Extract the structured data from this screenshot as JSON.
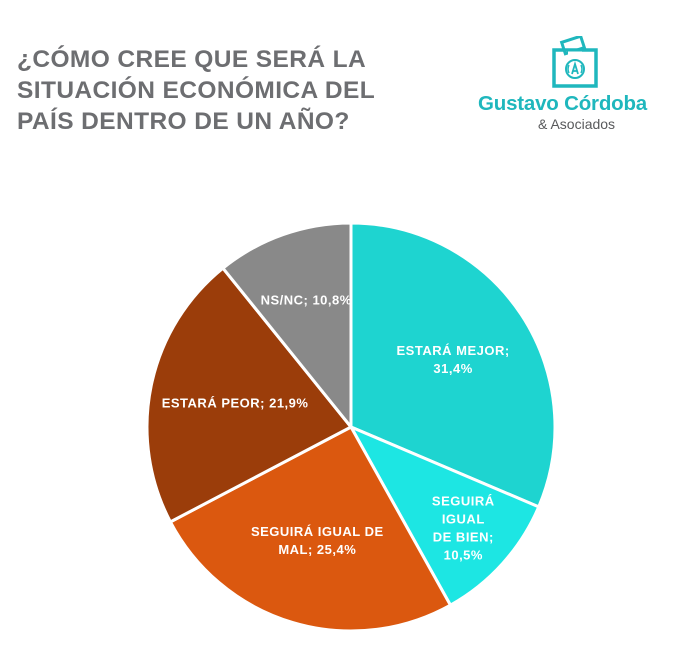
{
  "title_lines": [
    "¿CÓMO CREE QUE SERÁ LA",
    "SITUACIÓN ECONÓMICA DEL",
    "PAÍS DENTRO DE UN AÑO?"
  ],
  "logo": {
    "name": "Gustavo Córdoba",
    "sub": "& Asociados",
    "icon": "ballot-box-icon"
  },
  "colors": {
    "title": "#6d6e71",
    "brand": "#1fb7bd"
  },
  "chart_data": {
    "type": "pie",
    "title": "¿CÓMO CREE QUE SERÁ LA SITUACIÓN ECONÓMICA DEL PAÍS DENTRO DE UN AÑO?",
    "legend": "none (labels inside slices)",
    "slices": [
      {
        "label": "ESTARÁ MEJOR",
        "value": 31.4,
        "text": [
          "ESTARÁ MEJOR;",
          "31,4%"
        ],
        "color": "#1ed4d0"
      },
      {
        "label": "SEGUIRÁ IGUAL DE BIEN",
        "value": 10.5,
        "text": [
          "SEGUIRÁ",
          "IGUAL",
          "DE BIEN;",
          "10,5%"
        ],
        "color": "#1de6e3"
      },
      {
        "label": "SEGUIRÁ IGUAL DE MAL",
        "value": 25.4,
        "text": [
          "SEGUIRÁ IGUAL DE",
          "MAL; 25,4%"
        ],
        "color": "#db580f"
      },
      {
        "label": "ESTARÁ PEOR",
        "value": 21.9,
        "text": [
          "ESTARÁ PEOR; 21,9%"
        ],
        "color": "#9b3d0a"
      },
      {
        "label": "NS/NC",
        "value": 10.8,
        "text": [
          "NS/NC; 10,8%"
        ],
        "color": "#898989"
      }
    ]
  }
}
